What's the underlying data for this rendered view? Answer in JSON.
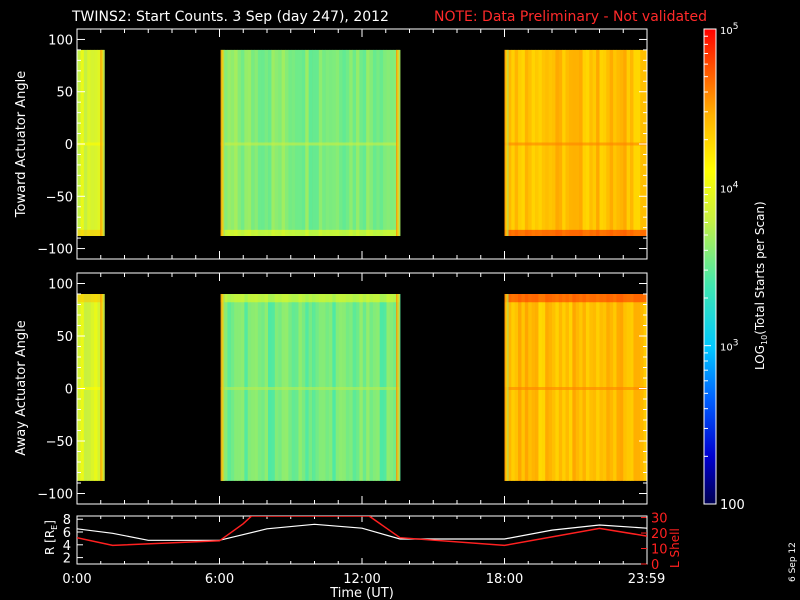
{
  "title": {
    "main": "TWINS2: Start Counts.  3 Sep (day 247), 2012",
    "note": "NOTE: Data Preliminary - Not validated",
    "note_color": "#ff2a2a"
  },
  "side_date": "6 Sep 12",
  "colorbar": {
    "label": "LOG10(Total Starts per Scan)",
    "label_main": "LOG",
    "label_sub": "10",
    "label_rest": "(Total Starts per Scan)",
    "scale": "log",
    "range": [
      100,
      100000
    ],
    "ticks": [
      {
        "value": 100,
        "text": "100"
      },
      {
        "value": 1000,
        "base": "10",
        "exp": "3"
      },
      {
        "value": 10000,
        "base": "10",
        "exp": "4"
      },
      {
        "value": 100000,
        "base": "10",
        "exp": "5"
      }
    ]
  },
  "panels": {
    "toward": {
      "ylabel": "Toward Actuator Angle"
    },
    "away": {
      "ylabel": "Away Actuator Angle"
    },
    "orbit": {
      "ylabel_left": "R [R",
      "ylabel_left_sub": "E",
      "ylabel_left_end": "]",
      "ylabel_right": "L Shell",
      "right_color": "#ff2020"
    }
  },
  "angle_ticks": [
    "100",
    "50",
    "0",
    "−50",
    "−100"
  ],
  "orbit_left_ticks": [
    "8",
    "6",
    "4",
    "2"
  ],
  "orbit_right_ticks": [
    "30",
    "20",
    "10",
    "0"
  ],
  "xaxis": {
    "label": "Time (UT)",
    "ticks": [
      "0:00",
      "6:00",
      "12:00",
      "18:00",
      "23:59"
    ]
  },
  "chart_data": [
    {
      "type": "heatmap",
      "name": "Toward Actuator Angle",
      "xlabel": "Time (UT)",
      "ylabel": "Toward Actuator Angle",
      "xlim": [
        0,
        24
      ],
      "ylim": [
        -110,
        110
      ],
      "data_ylim": [
        -88,
        90
      ],
      "color_scale": "log10 total starts per scan, 100 to 100000",
      "coverage_hours": [
        [
          0.0,
          1.15
        ],
        [
          6.05,
          13.6
        ],
        [
          18.0,
          24.0
        ]
      ],
      "typical_counts": [
        {
          "interval": [
            0.0,
            1.15
          ],
          "value": 8000
        },
        {
          "interval": [
            6.05,
            13.6
          ],
          "value": 4000
        },
        {
          "interval": [
            18.0,
            24.0
          ],
          "value": 25000
        }
      ],
      "ridge_near_angle": 0
    },
    {
      "type": "heatmap",
      "name": "Away Actuator Angle",
      "xlabel": "Time (UT)",
      "ylabel": "Away Actuator Angle",
      "xlim": [
        0,
        24
      ],
      "ylim": [
        -110,
        110
      ],
      "data_ylim": [
        -88,
        90
      ],
      "color_scale": "log10 total starts per scan, 100 to 100000",
      "coverage_hours": [
        [
          0.0,
          1.15
        ],
        [
          6.05,
          13.6
        ],
        [
          18.0,
          24.0
        ]
      ],
      "typical_counts": [
        {
          "interval": [
            0.0,
            1.15
          ],
          "value": 8000
        },
        {
          "interval": [
            6.05,
            13.6
          ],
          "value": 3500
        },
        {
          "interval": [
            18.0,
            24.0
          ],
          "value": 25000
        }
      ],
      "ridge_near_angle": 0
    },
    {
      "type": "line",
      "xlabel": "Time (UT)",
      "xlim": [
        0,
        24
      ],
      "series": [
        {
          "axis": "left",
          "ylim": [
            1,
            8.5
          ],
          "color": "#ffffff",
          "x": [
            0,
            1.5,
            3,
            6,
            8,
            10,
            12,
            13.6,
            15,
            18,
            20,
            22,
            24
          ],
          "y": [
            6.5,
            5.8,
            4.7,
            4.7,
            6.5,
            7.2,
            6.6,
            4.9,
            4.9,
            4.9,
            6.3,
            7.1,
            6.6
          ]
        },
        {
          "axis": "right",
          "ylim": [
            0,
            31
          ],
          "color": "#ff2020",
          "x": [
            0,
            1.5,
            6,
            7.0,
            7.35,
            12.3,
            13.6,
            18,
            22,
            24
          ],
          "y": [
            17,
            12,
            15,
            26,
            31,
            31,
            17,
            12,
            23,
            18
          ]
        }
      ]
    }
  ]
}
